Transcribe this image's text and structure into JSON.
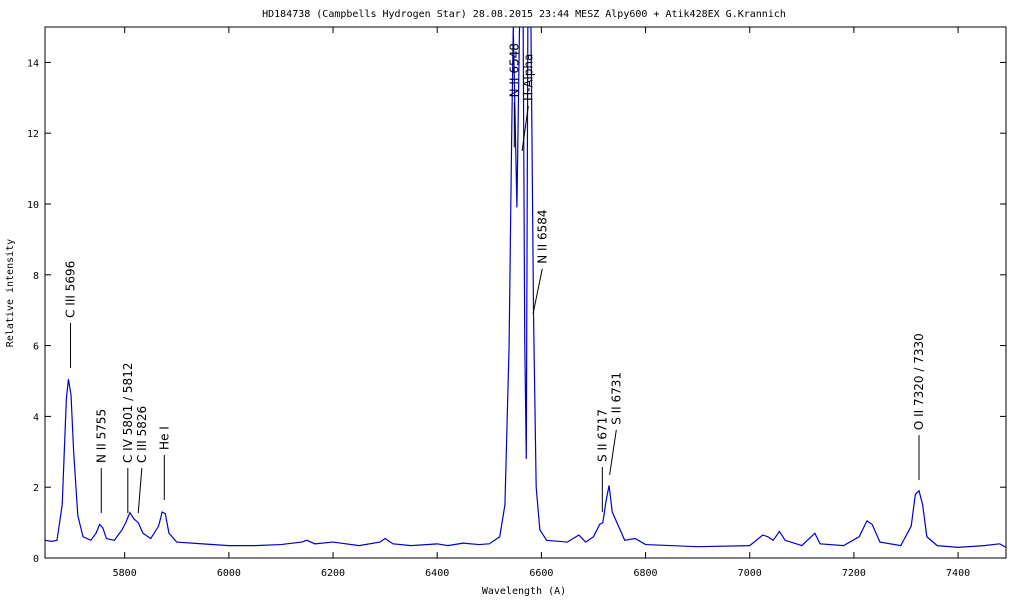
{
  "chart_data": {
    "type": "line",
    "title": "HD184738 (Campbells Hydrogen Star)   28.08.2015  23:44 MESZ  Alpy600 + Atik428EX   G.Krannich",
    "xlabel": "Wavelength (A)",
    "ylabel": "Relative intensity",
    "xlim": [
      5647,
      7492
    ],
    "ylim": [
      0,
      15
    ],
    "xticks": [
      5800,
      6000,
      6200,
      6400,
      6600,
      6800,
      7000,
      7200,
      7400
    ],
    "yticks": [
      0,
      2,
      4,
      6,
      8,
      10,
      12,
      14
    ],
    "series": [
      {
        "color": "#0000cc",
        "x": [
          5647,
          5660,
          5670,
          5680,
          5688,
          5692,
          5697,
          5702,
          5710,
          5720,
          5735,
          5745,
          5752,
          5758,
          5765,
          5780,
          5795,
          5802,
          5810,
          5818,
          5826,
          5835,
          5850,
          5865,
          5872,
          5878,
          5885,
          5900,
          5950,
          6000,
          6050,
          6100,
          6140,
          6150,
          6165,
          6200,
          6250,
          6290,
          6300,
          6315,
          6350,
          6400,
          6420,
          6450,
          6480,
          6500,
          6520,
          6530,
          6538,
          6543,
          6546,
          6553,
          6558,
          6565,
          6568,
          6571,
          6574,
          6580,
          6585,
          6590,
          6597,
          6610,
          6650,
          6672,
          6685,
          6700,
          6712,
          6718,
          6724,
          6730,
          6736,
          6745,
          6760,
          6780,
          6800,
          6900,
          7000,
          7025,
          7035,
          7045,
          7057,
          7068,
          7100,
          7125,
          7135,
          7180,
          7210,
          7225,
          7235,
          7250,
          7290,
          7310,
          7318,
          7325,
          7332,
          7340,
          7360,
          7400,
          7450,
          7480,
          7492
        ],
        "values": [
          0.5,
          0.47,
          0.5,
          1.5,
          4.5,
          5.05,
          4.6,
          3.0,
          1.2,
          0.6,
          0.5,
          0.7,
          0.95,
          0.85,
          0.55,
          0.5,
          0.8,
          1.0,
          1.28,
          1.1,
          1.0,
          0.7,
          0.55,
          0.9,
          1.3,
          1.25,
          0.7,
          0.45,
          0.4,
          0.35,
          0.35,
          0.38,
          0.45,
          0.5,
          0.4,
          0.45,
          0.35,
          0.45,
          0.55,
          0.4,
          0.35,
          0.4,
          0.35,
          0.42,
          0.38,
          0.4,
          0.6,
          1.5,
          6,
          12,
          15,
          9.9,
          15,
          15,
          6.2,
          2.8,
          15,
          15,
          6.8,
          2,
          0.8,
          0.5,
          0.45,
          0.65,
          0.45,
          0.6,
          0.95,
          1.0,
          1.6,
          2.05,
          1.3,
          1.0,
          0.5,
          0.55,
          0.38,
          0.32,
          0.35,
          0.65,
          0.6,
          0.5,
          0.75,
          0.5,
          0.35,
          0.7,
          0.4,
          0.35,
          0.6,
          1.05,
          0.95,
          0.45,
          0.35,
          0.9,
          1.8,
          1.9,
          1.5,
          0.6,
          0.35,
          0.3,
          0.35,
          0.4,
          0.3
        ]
      }
    ],
    "annotations": [
      {
        "text": "C III 5696",
        "x": 5696,
        "y": 5.37
      },
      {
        "text": "N II 5755",
        "x": 5755,
        "y": 1.27
      },
      {
        "text": "C IV 5801 / 5812",
        "x": 5806,
        "y": 1.27
      },
      {
        "text": "C III 5826",
        "x": 5826,
        "y": 1.27
      },
      {
        "text": "He I",
        "x": 5876,
        "y": 1.64
      },
      {
        "text": "N II 6548",
        "x": 6548,
        "y": 11.6
      },
      {
        "text": "H-Alpha",
        "x": 6563,
        "y": 11.5
      },
      {
        "text": "N II 6584",
        "x": 6584,
        "y": 6.9
      },
      {
        "text": "S II 6717",
        "x": 6717,
        "y": 1.3
      },
      {
        "text": "S II 6731",
        "x": 6731,
        "y": 2.35
      },
      {
        "text": "O II 7320 / 7330",
        "x": 7325,
        "y": 2.2
      }
    ]
  }
}
